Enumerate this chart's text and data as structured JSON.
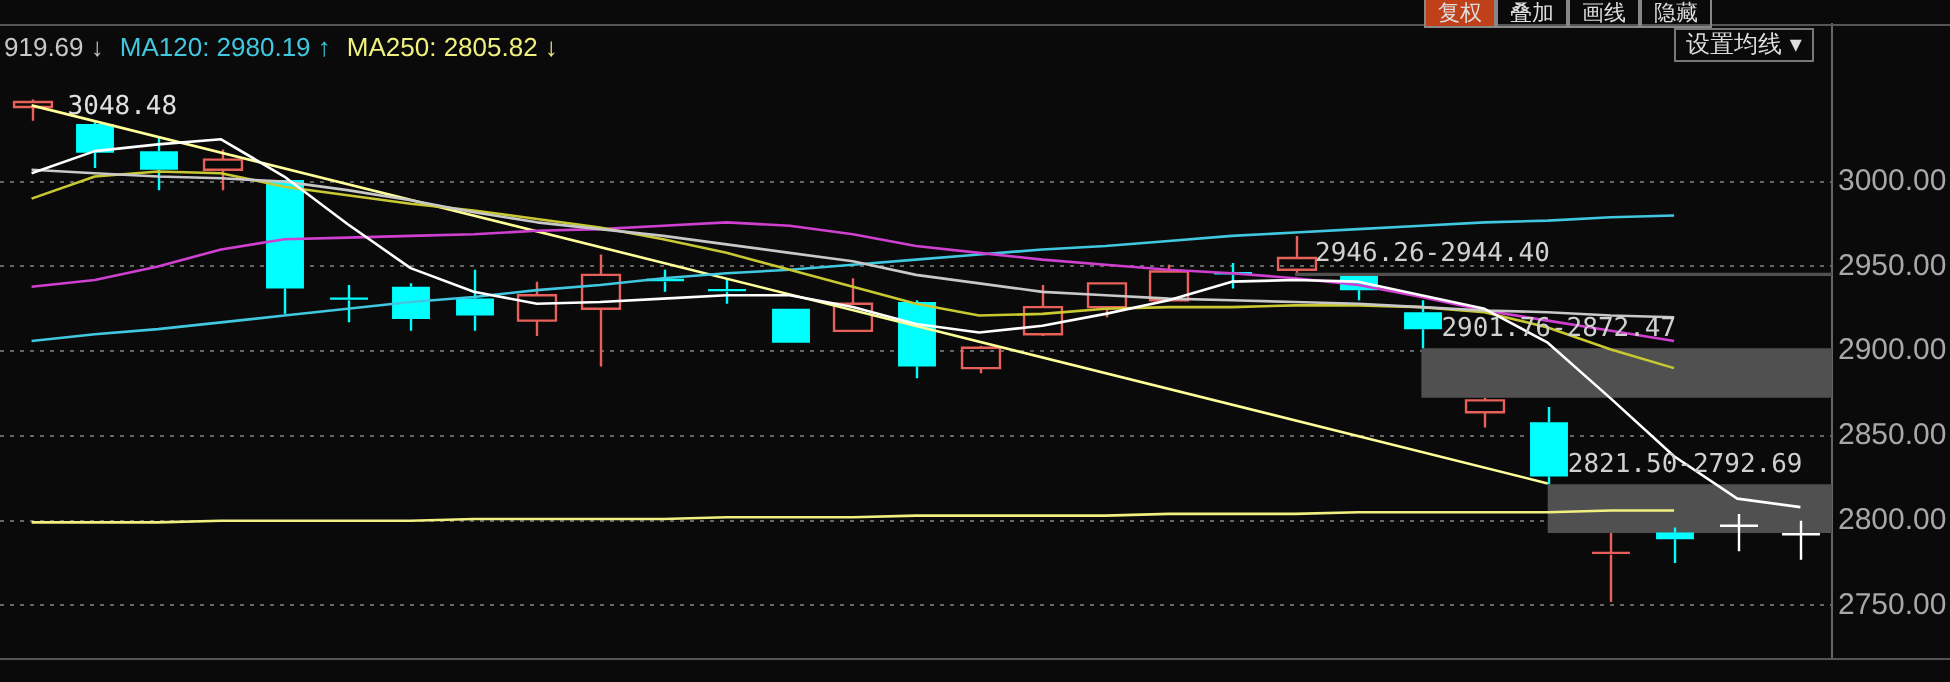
{
  "chart_data": {
    "type": "candlestick",
    "categories": [
      null,
      null,
      null,
      null,
      null,
      null,
      null,
      null,
      null,
      null,
      null,
      null,
      null,
      null,
      null,
      null,
      null,
      null,
      null,
      null,
      null,
      null,
      null,
      null,
      null,
      null,
      null,
      null,
      null
    ],
    "ohlc": [
      [
        3044,
        3048.48,
        3036,
        3047
      ],
      [
        3034,
        3035,
        3008,
        3017
      ],
      [
        3018,
        3027,
        2995,
        3007
      ],
      [
        3007,
        3019,
        2995,
        3013
      ],
      [
        3001,
        3001,
        2922,
        2937
      ],
      [
        2931,
        2939,
        2917,
        2930
      ],
      [
        2938,
        2940,
        2912,
        2919
      ],
      [
        2931,
        2948,
        2912,
        2921
      ],
      [
        2918,
        2941,
        2909,
        2933
      ],
      [
        2925,
        2957,
        2891,
        2945
      ],
      [
        2942,
        2948,
        2935,
        2941
      ],
      [
        2936,
        2943,
        2928,
        2935
      ],
      [
        2925,
        2925,
        2905,
        2905
      ],
      [
        2912,
        2943,
        2912,
        2928
      ],
      [
        2929,
        2930,
        2884,
        2891
      ],
      [
        2890,
        2903,
        2887,
        2902
      ],
      [
        2910,
        2939,
        2909,
        2926
      ],
      [
        2926,
        2940,
        2920,
        2940
      ],
      [
        2930,
        2951,
        2930,
        2947
      ],
      [
        2946,
        2952,
        2937,
        2945
      ],
      [
        2948,
        2968,
        2946.26,
        2955
      ],
      [
        2944.4,
        2944.4,
        2930,
        2936
      ],
      [
        2923,
        2930,
        2901.76,
        2913
      ],
      [
        2864,
        2872.47,
        2855,
        2871
      ],
      [
        2858,
        2867,
        2821.5,
        2826
      ],
      [
        2780,
        2792.69,
        2752,
        2781
      ],
      [
        2793,
        2796,
        2775,
        2789
      ],
      [
        2797,
        2804,
        2782,
        2797
      ],
      [
        2792,
        2800,
        2777,
        2792
      ]
    ],
    "colors": [
      "#e8605a",
      "#00ffff",
      "#00ffff",
      "#e8605a",
      "#00ffff",
      "#00ffff",
      "#00ffff",
      "#00ffff",
      "#e8605a",
      "#e8605a",
      "#00ffff",
      "#00ffff",
      "#00ffff",
      "#e8605a",
      "#00ffff",
      "#e8605a",
      "#e8605a",
      "#e8605a",
      "#e8605a",
      "#00ffff",
      "#e8605a",
      "#00ffff",
      "#00ffff",
      "#e8605a",
      "#00ffff",
      "#e8605a",
      "#00ffff",
      "#ffffff",
      "#ffffff"
    ],
    "series": [
      {
        "type": "line",
        "color": "#ffffff",
        "values": [
          3005,
          3018,
          3022,
          3025,
          3003,
          2975,
          2949,
          2935,
          2928,
          2929,
          2931,
          2933,
          2933,
          2926,
          2916,
          2911,
          2915,
          2922,
          2930,
          2941,
          2942,
          2941,
          2933,
          2925,
          2905,
          2872,
          2838,
          2813,
          2808
        ]
      },
      {
        "type": "line",
        "name": "919.69 ↓",
        "color": "#c8c8c8",
        "values": [
          3007,
          3005,
          3003,
          3002,
          3000,
          2995,
          2989,
          2982,
          2976,
          2972,
          2968,
          2963,
          2958,
          2953,
          2945,
          2940,
          2935,
          2933,
          2931,
          2930,
          2929,
          2928,
          2926,
          2924,
          2923,
          2921,
          2920,
          null,
          null
        ]
      },
      {
        "type": "line",
        "color": "#c8c832",
        "values": [
          2990,
          3003,
          3006,
          3005,
          2997,
          2992,
          2987,
          2983,
          2978,
          2973,
          2966,
          2958,
          2948,
          2938,
          2928,
          2921,
          2922,
          2925,
          2926,
          2926,
          2927,
          2927,
          2926,
          2923,
          2914,
          2901,
          2890,
          null,
          null
        ]
      },
      {
        "type": "line",
        "color": "#d040d0",
        "values": [
          2938,
          2942,
          2950,
          2960,
          2966,
          2967,
          2968,
          2969,
          2971,
          2972,
          2974,
          2976,
          2974,
          2969,
          2962,
          2958,
          2954,
          2951,
          2948,
          2946,
          2943,
          2939,
          2932,
          2924,
          2918,
          2912,
          2906,
          null,
          null
        ]
      },
      {
        "type": "line",
        "name": "MA120: 2980.19 ↑",
        "color": "#40c8e0",
        "values": [
          2906,
          2910,
          2913,
          2917,
          2921,
          2925,
          2929,
          2932,
          2936,
          2939,
          2943,
          2946,
          2948,
          2951,
          2954,
          2957,
          2960,
          2962,
          2965,
          2968,
          2970,
          2972,
          2974,
          2976,
          2977,
          2979,
          2980,
          null,
          null
        ]
      },
      {
        "type": "line",
        "name": "MA250: 2805.82 ↓",
        "color": "#f0f080",
        "values": [
          2799,
          2799,
          2799,
          2800,
          2800,
          2800,
          2800,
          2801,
          2801,
          2801,
          2801,
          2802,
          2802,
          2802,
          2803,
          2803,
          2803,
          2803,
          2804,
          2804,
          2804,
          2805,
          2805,
          2805,
          2805,
          2806,
          2806,
          null,
          null
        ]
      },
      {
        "type": "line",
        "color": "#ffff99",
        "values": [
          3045,
          null,
          null,
          null,
          null,
          null,
          null,
          null,
          null,
          null,
          null,
          null,
          null,
          null,
          null,
          null,
          null,
          null,
          null,
          null,
          null,
          null,
          null,
          null,
          2822,
          null,
          null,
          null,
          null
        ]
      }
    ],
    "bands": [
      {
        "axis": "y",
        "from": 2944.4,
        "to": 2946.26,
        "label": "2946.26-2944.40",
        "color": "#505050"
      },
      {
        "axis": "y",
        "from": 2872.47,
        "to": 2901.76,
        "label": "2901.76-2872.47",
        "color": "#505050"
      },
      {
        "axis": "y",
        "from": 2792.69,
        "to": 2821.5,
        "label": "2821.50-2792.69",
        "color": "#505050"
      }
    ],
    "annotations": [
      "3048.48",
      "复权",
      "叠加",
      "画线",
      "隐藏",
      "设置均线 ▾"
    ],
    "ylim": [
      2719,
      3093
    ],
    "yticks": [
      {
        "value": 2750,
        "label": "2750.00"
      },
      {
        "value": 2800,
        "label": "2800.00"
      },
      {
        "value": 2850,
        "label": "2850.00"
      },
      {
        "value": 2900,
        "label": "2900.00"
      },
      {
        "value": 2950,
        "label": "2950.00"
      },
      {
        "value": 3000,
        "label": "3000.00"
      }
    ],
    "grid": "y",
    "legend": "top left",
    "tick_labels": "y"
  }
}
